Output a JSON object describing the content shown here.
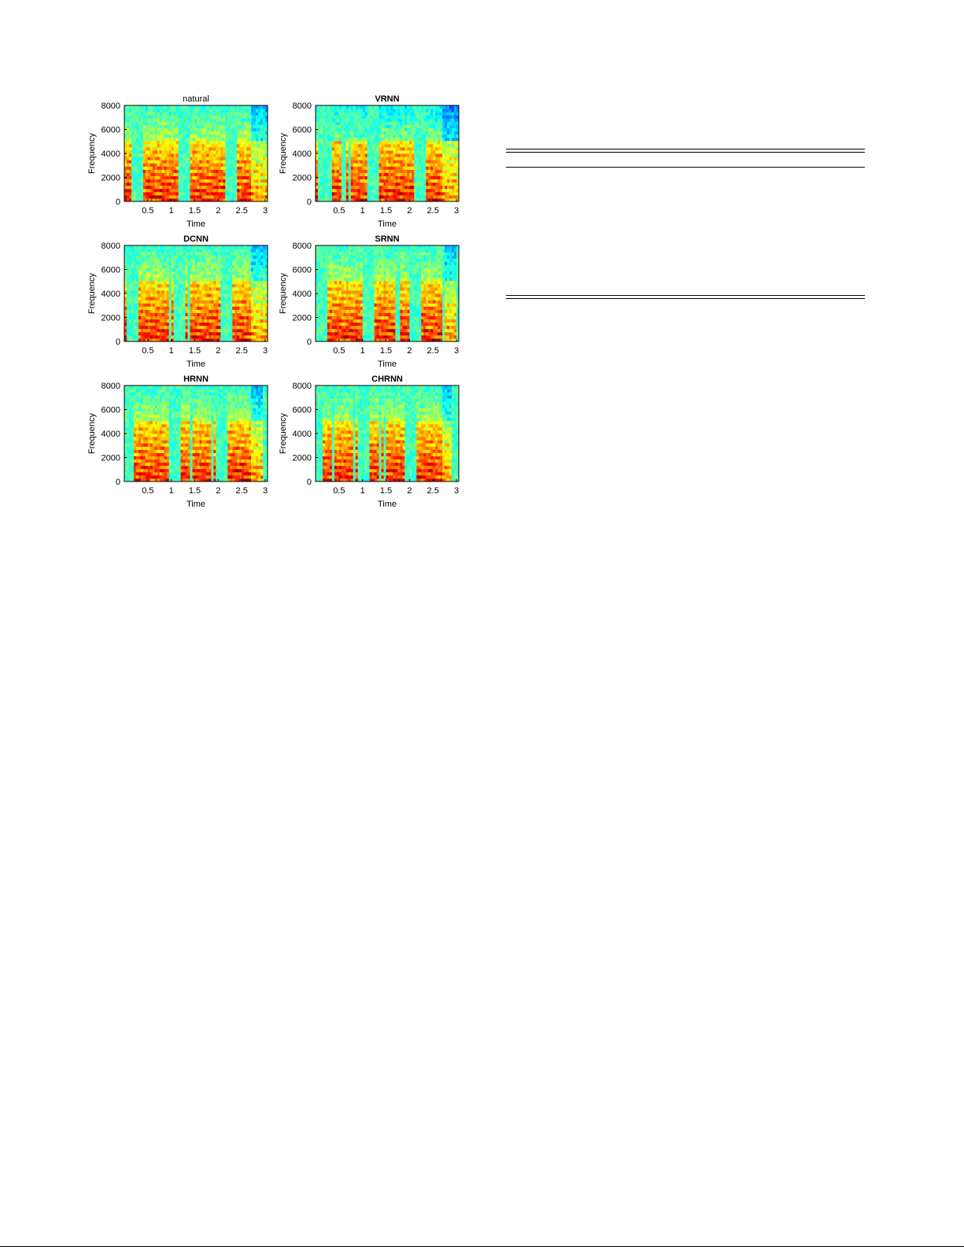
{
  "chart_data": [
    {
      "type": "heatmap",
      "title": "natural",
      "title_bold": false,
      "xlabel": "Time",
      "ylabel": "Frequency",
      "xlim": [
        0,
        3.05
      ],
      "ylim": [
        0,
        8000
      ],
      "xticks": [
        "0.5",
        "1",
        "1.5",
        "2",
        "2.5",
        "3"
      ],
      "yticks": [
        "0",
        "2000",
        "4000",
        "6000",
        "8000"
      ],
      "colormap": "jet",
      "variant": 0
    },
    {
      "type": "heatmap",
      "title": "VRNN",
      "title_bold": true,
      "xlabel": "Time",
      "ylabel": "Frequency",
      "xlim": [
        0,
        3.05
      ],
      "ylim": [
        0,
        8000
      ],
      "xticks": [
        "0.5",
        "1",
        "1.5",
        "2",
        "2.5",
        "3"
      ],
      "yticks": [
        "0",
        "2000",
        "4000",
        "6000",
        "8000"
      ],
      "colormap": "jet",
      "variant": 1
    },
    {
      "type": "heatmap",
      "title": "DCNN",
      "title_bold": true,
      "xlabel": "Time",
      "ylabel": "Frequency",
      "xlim": [
        0,
        3.05
      ],
      "ylim": [
        0,
        8000
      ],
      "xticks": [
        "0.5",
        "1",
        "1.5",
        "2",
        "2.5",
        "3"
      ],
      "yticks": [
        "0",
        "2000",
        "4000",
        "6000",
        "8000"
      ],
      "colormap": "jet",
      "variant": 2
    },
    {
      "type": "heatmap",
      "title": "SRNN",
      "title_bold": true,
      "xlabel": "Time",
      "ylabel": "Frequency",
      "xlim": [
        0,
        3.05
      ],
      "ylim": [
        0,
        8000
      ],
      "xticks": [
        "0.5",
        "1",
        "1.5",
        "2",
        "2.5",
        "3"
      ],
      "yticks": [
        "0",
        "2000",
        "4000",
        "6000",
        "8000"
      ],
      "colormap": "jet",
      "variant": 3
    },
    {
      "type": "heatmap",
      "title": "HRNN",
      "title_bold": true,
      "xlabel": "Time",
      "ylabel": "Frequency",
      "xlim": [
        0,
        3.05
      ],
      "ylim": [
        0,
        8000
      ],
      "xticks": [
        "0.5",
        "1",
        "1.5",
        "2",
        "2.5",
        "3"
      ],
      "yticks": [
        "0",
        "2000",
        "4000",
        "6000",
        "8000"
      ],
      "colormap": "jet",
      "variant": 4
    },
    {
      "type": "heatmap",
      "title": "CHRNN",
      "title_bold": true,
      "xlabel": "Time",
      "ylabel": "Frequency",
      "xlim": [
        0,
        3.05
      ],
      "ylim": [
        0,
        8000
      ],
      "xticks": [
        "0.5",
        "1",
        "1.5",
        "2",
        "2.5",
        "3"
      ],
      "yticks": [
        "0",
        "2000",
        "4000",
        "6000",
        "8000"
      ],
      "colormap": "jet",
      "variant": 5
    }
  ]
}
